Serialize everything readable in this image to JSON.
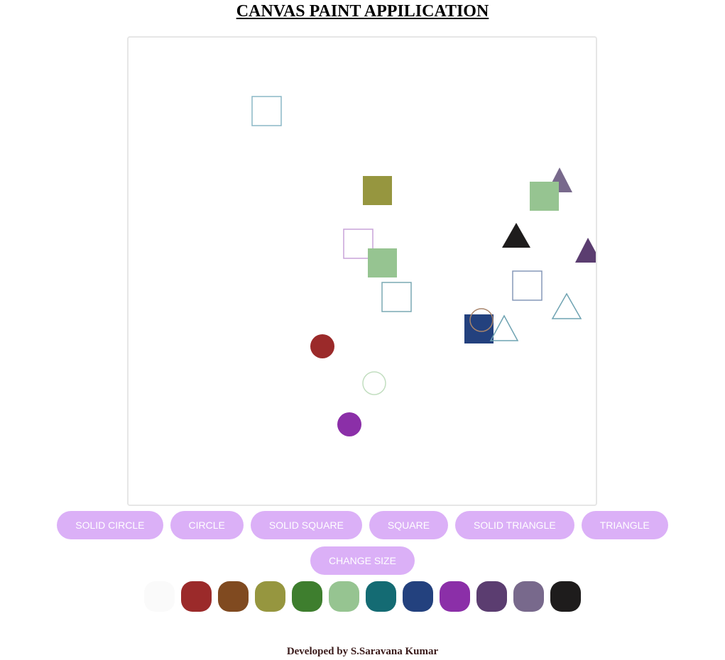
{
  "page": {
    "title": "CANVAS PAINT APPILICATION",
    "footer": "Developed by S.Saravana Kumar"
  },
  "toolbar": {
    "solid_circle": "SOLID CIRCLE",
    "circle": "CIRCLE",
    "solid_square": "SOLID SQUARE",
    "square": "SQUARE",
    "solid_triangle": "SOLID TRIANGLE",
    "triangle": "TRIANGLE",
    "change_size": "CHANGE SIZE"
  },
  "palette": [
    "#fafafa",
    "#9b2a2a",
    "#804a20",
    "#96963f",
    "#3e7e2e",
    "#96c491",
    "#146b73",
    "#23417e",
    "#8b2fa8",
    "#5b3d70",
    "#78698c",
    "#1e1c1c"
  ],
  "theme": {
    "button_bg": "#dbb0f7",
    "button_text": "#ffffff"
  }
}
